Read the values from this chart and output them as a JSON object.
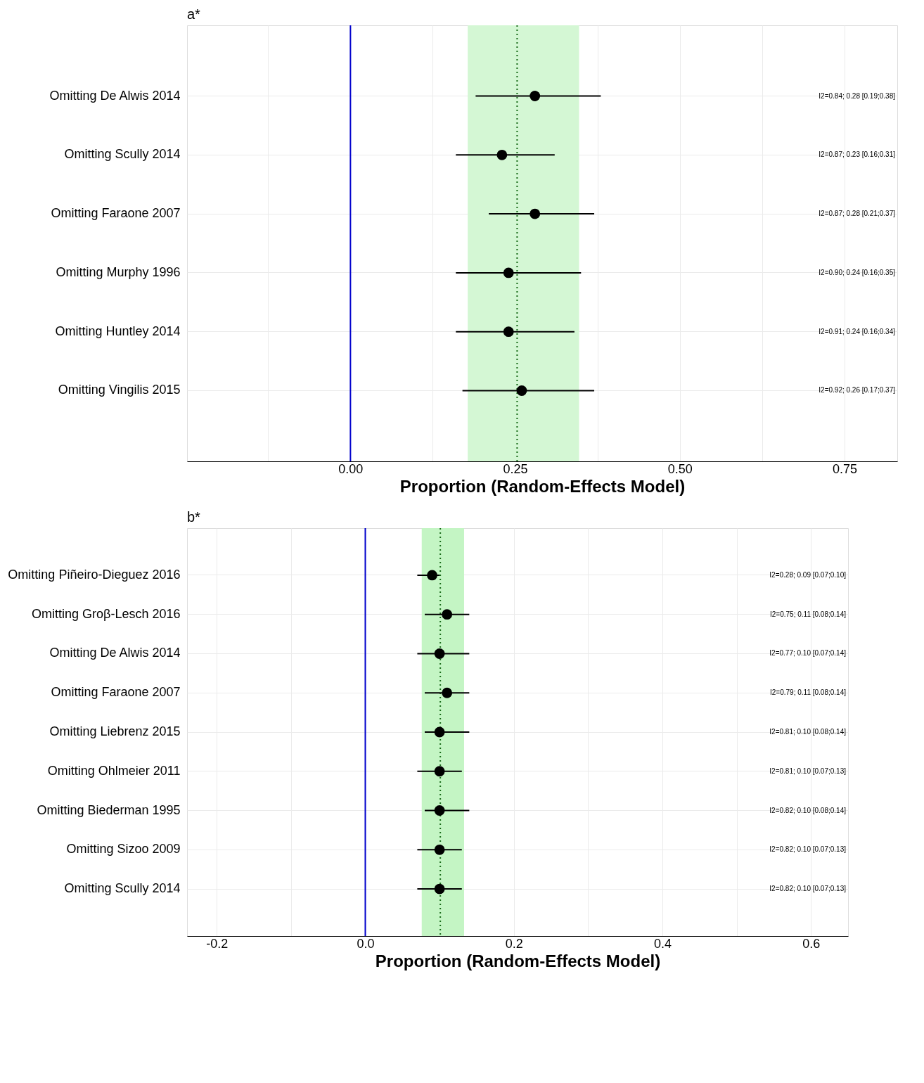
{
  "chart_data": [
    {
      "type": "scatter",
      "orientation": "horizontal",
      "title": "a*",
      "xlabel": "Proportion (Random-Effects Model)",
      "categories": [
        "Omitting De Alwis 2014",
        "Omitting Scully 2014",
        "Omitting Faraone 2007",
        "Omitting Murphy 1996",
        "Omitting Huntley 2014",
        "Omitting Vingilis 2015"
      ],
      "series": [
        {
          "color": "#000000",
          "values": [
            0.28,
            0.23,
            0.28,
            0.24,
            0.24,
            0.26
          ],
          "errors": [
            [
              0.19,
              0.38
            ],
            [
              0.16,
              0.31
            ],
            [
              0.21,
              0.37
            ],
            [
              0.16,
              0.35
            ],
            [
              0.16,
              0.34
            ],
            [
              0.17,
              0.37
            ]
          ]
        }
      ],
      "annotations": [
        "I2=0.84; 0.28 [0.19;0.38]",
        "I2=0.87; 0.23 [0.16;0.31]",
        "I2=0.87; 0.28 [0.21;0.37]",
        "I2=0.90; 0.24 [0.16;0.35]",
        "I2=0.91; 0.24 [0.16;0.34]",
        "I2=0.92; 0.26 [0.17;0.37]"
      ],
      "xlim": [
        -0.248,
        0.83
      ],
      "xticks": [
        {
          "value": -0.125,
          "label": null
        },
        {
          "value": 0,
          "label": "0.00"
        },
        {
          "value": 0.125,
          "label": null
        },
        {
          "value": 0.25,
          "label": "0.25"
        },
        {
          "value": 0.375,
          "label": null
        },
        {
          "value": 0.5,
          "label": "0.50"
        },
        {
          "value": 0.625,
          "label": null
        },
        {
          "value": 0.75,
          "label": "0.75"
        }
      ],
      "bands": [
        {
          "axis": "x",
          "from": 0.178,
          "to": 0.347,
          "color": "#d4f7d4"
        }
      ],
      "ref_lines": [
        {
          "axis": "x",
          "value": 0,
          "color": "#0000cc",
          "line_style": "solid"
        },
        {
          "axis": "x",
          "value": 0.253,
          "color": "#1a6b1a",
          "line_style": "dotted"
        }
      ],
      "grid": true,
      "marker": "circle"
    },
    {
      "type": "scatter",
      "orientation": "horizontal",
      "title": "b*",
      "xlabel": "Proportion (Random-Effects Model)",
      "categories": [
        "Omitting Piñeiro-Dieguez 2016",
        "Omitting Groβ-Lesch 2016",
        "Omitting De Alwis 2014",
        "Omitting Faraone 2007",
        "Omitting Liebrenz 2015",
        "Omitting Ohlmeier 2011",
        "Omitting Biederman 1995",
        "Omitting Sizoo 2009",
        "Omitting Scully 2014"
      ],
      "series": [
        {
          "color": "#000000",
          "values": [
            0.09,
            0.11,
            0.1,
            0.11,
            0.1,
            0.1,
            0.1,
            0.1,
            0.1
          ],
          "errors": [
            [
              0.07,
              0.1
            ],
            [
              0.08,
              0.14
            ],
            [
              0.07,
              0.14
            ],
            [
              0.08,
              0.14
            ],
            [
              0.08,
              0.14
            ],
            [
              0.07,
              0.13
            ],
            [
              0.08,
              0.14
            ],
            [
              0.07,
              0.13
            ],
            [
              0.07,
              0.13
            ]
          ]
        }
      ],
      "annotations": [
        "I2=0.28; 0.09 [0.07;0.10]",
        "I2=0.75; 0.11 [0.08;0.14]",
        "I2=0.77; 0.10 [0.07;0.14]",
        "I2=0.79; 0.11 [0.08;0.14]",
        "I2=0.81; 0.10 [0.08;0.14]",
        "I2=0.81; 0.10 [0.07;0.13]",
        "I2=0.82; 0.10 [0.08;0.14]",
        "I2=0.82; 0.10 [0.07;0.13]",
        "I2=0.82; 0.10 [0.07;0.13]"
      ],
      "xlim": [
        -0.24,
        0.65
      ],
      "xticks": [
        {
          "value": -0.2,
          "label": "-0.2"
        },
        {
          "value": -0.1,
          "label": null
        },
        {
          "value": 0,
          "label": "0.0"
        },
        {
          "value": 0.1,
          "label": null
        },
        {
          "value": 0.2,
          "label": "0.2"
        },
        {
          "value": 0.3,
          "label": null
        },
        {
          "value": 0.4,
          "label": "0.4"
        },
        {
          "value": 0.5,
          "label": null
        },
        {
          "value": 0.6,
          "label": "0.6"
        }
      ],
      "bands": [
        {
          "axis": "x",
          "from": 0.076,
          "to": 0.133,
          "color": "#c4f5c4"
        }
      ],
      "ref_lines": [
        {
          "axis": "x",
          "value": 0,
          "color": "#0000cc",
          "line_style": "solid"
        },
        {
          "axis": "x",
          "value": 0.101,
          "color": "#1a6b1a",
          "line_style": "dotted"
        }
      ],
      "grid": true,
      "marker": "circle"
    }
  ]
}
